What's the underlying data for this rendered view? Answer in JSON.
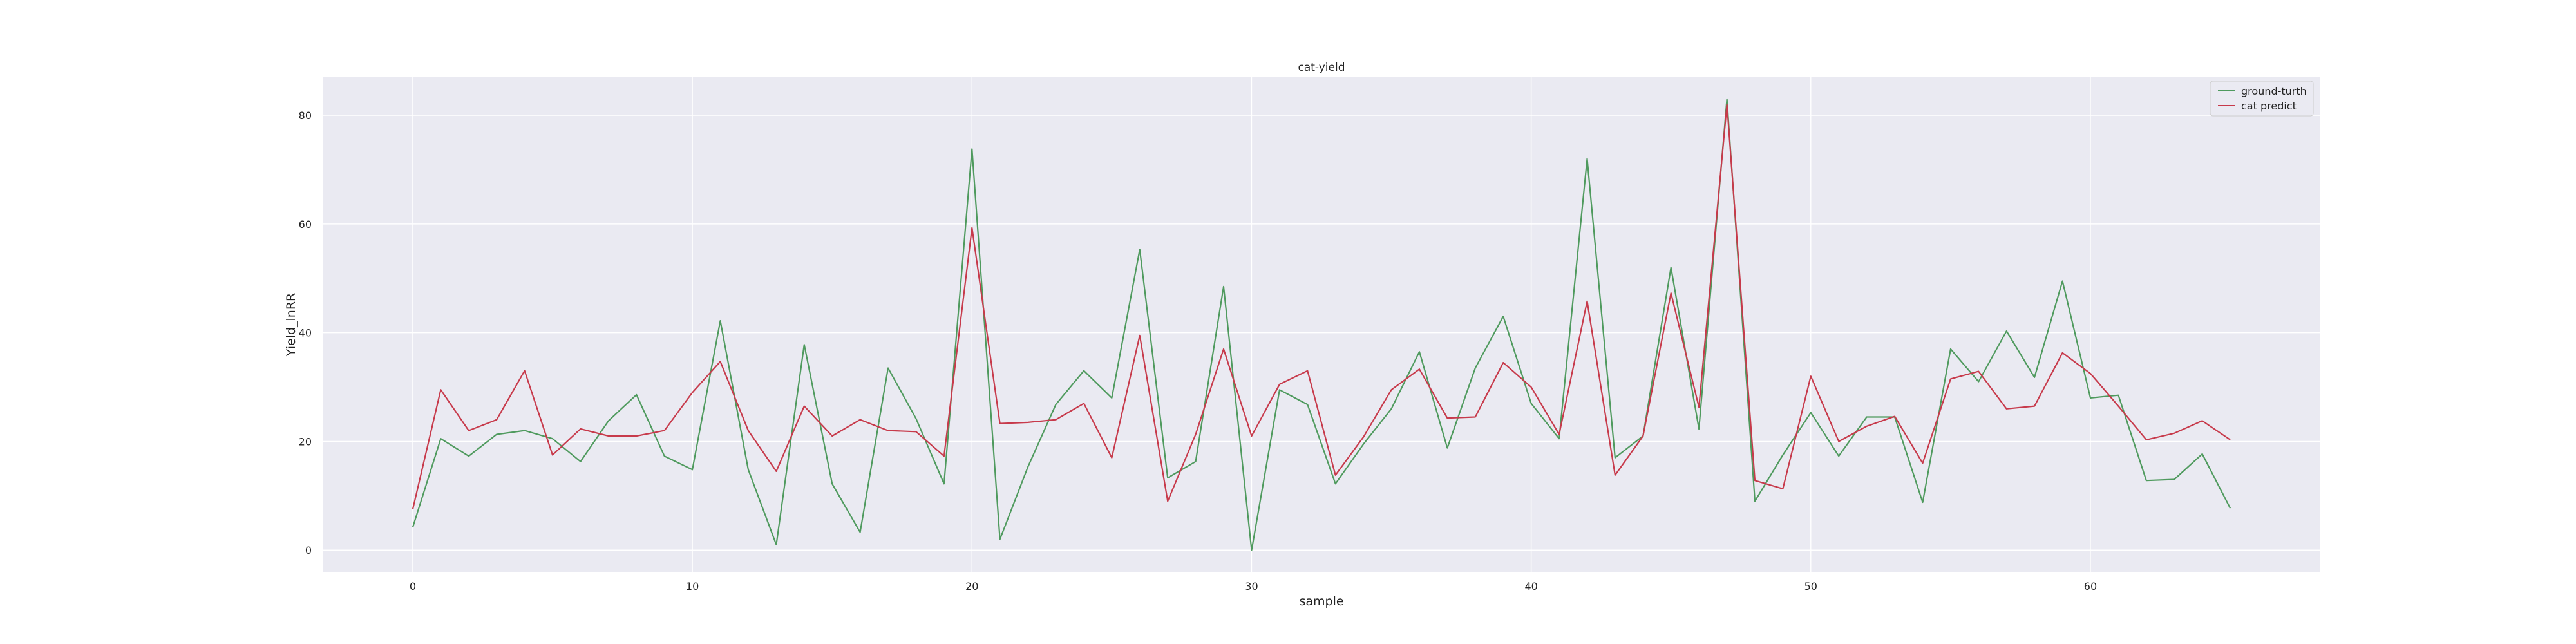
{
  "chart_data": {
    "type": "line",
    "title": "cat-yield",
    "xlabel": "sample",
    "ylabel": "Yield_lnRR",
    "xlim": [
      -3.2,
      68.2
    ],
    "ylim": [
      -4,
      87
    ],
    "x_ticks": [
      0,
      10,
      20,
      30,
      40,
      50,
      60
    ],
    "y_ticks": [
      0,
      20,
      40,
      60,
      80
    ],
    "grid": true,
    "legend_position": "top-right",
    "colors": {
      "plot_background": "#eaeaf2",
      "grid": "#ffffff",
      "ground_truth": "#4f9a5e",
      "prediction": "#c73a4b"
    },
    "series": [
      {
        "name": "ground-turth",
        "color_key": "ground_truth",
        "values": [
          4.2,
          20.5,
          17.3,
          21.3,
          22.0,
          20.5,
          16.3,
          23.8,
          28.6,
          17.3,
          14.8,
          42.2,
          14.8,
          1.0,
          37.8,
          12.2,
          3.3,
          33.5,
          24.2,
          12.2,
          73.8,
          2.0,
          15.3,
          26.8,
          33.0,
          28.0,
          55.3,
          13.3,
          16.3,
          48.5,
          0.0,
          29.5,
          26.8,
          12.2,
          19.5,
          26.0,
          36.5,
          18.8,
          33.5,
          43.0,
          27.0,
          20.5,
          72.0,
          17.0,
          21.0,
          52.0,
          22.3,
          83.0,
          9.0,
          17.5,
          25.3,
          17.3,
          24.5,
          24.5,
          8.8,
          37.0,
          31.0,
          40.3,
          31.8,
          49.5,
          28.0,
          28.5,
          12.8,
          13.0,
          17.7,
          7.7
        ]
      },
      {
        "name": "cat predict",
        "color_key": "prediction",
        "values": [
          7.5,
          29.5,
          22.0,
          24.0,
          33.0,
          17.5,
          22.3,
          21.0,
          21.0,
          22.0,
          29.0,
          34.7,
          22.0,
          14.5,
          26.5,
          21.0,
          24.0,
          22.0,
          21.8,
          17.3,
          59.3,
          23.3,
          23.5,
          24.0,
          27.0,
          17.0,
          39.5,
          9.0,
          21.3,
          37.0,
          21.0,
          30.5,
          33.0,
          13.8,
          20.8,
          29.5,
          33.3,
          24.3,
          24.5,
          34.5,
          30.0,
          21.3,
          45.8,
          13.8,
          21.0,
          47.3,
          26.3,
          82.0,
          12.8,
          11.3,
          32.0,
          20.0,
          22.8,
          24.6,
          16.0,
          31.5,
          32.9,
          26.0,
          26.5,
          36.3,
          32.5,
          26.5,
          20.3,
          21.5,
          23.8,
          20.3
        ]
      }
    ]
  }
}
